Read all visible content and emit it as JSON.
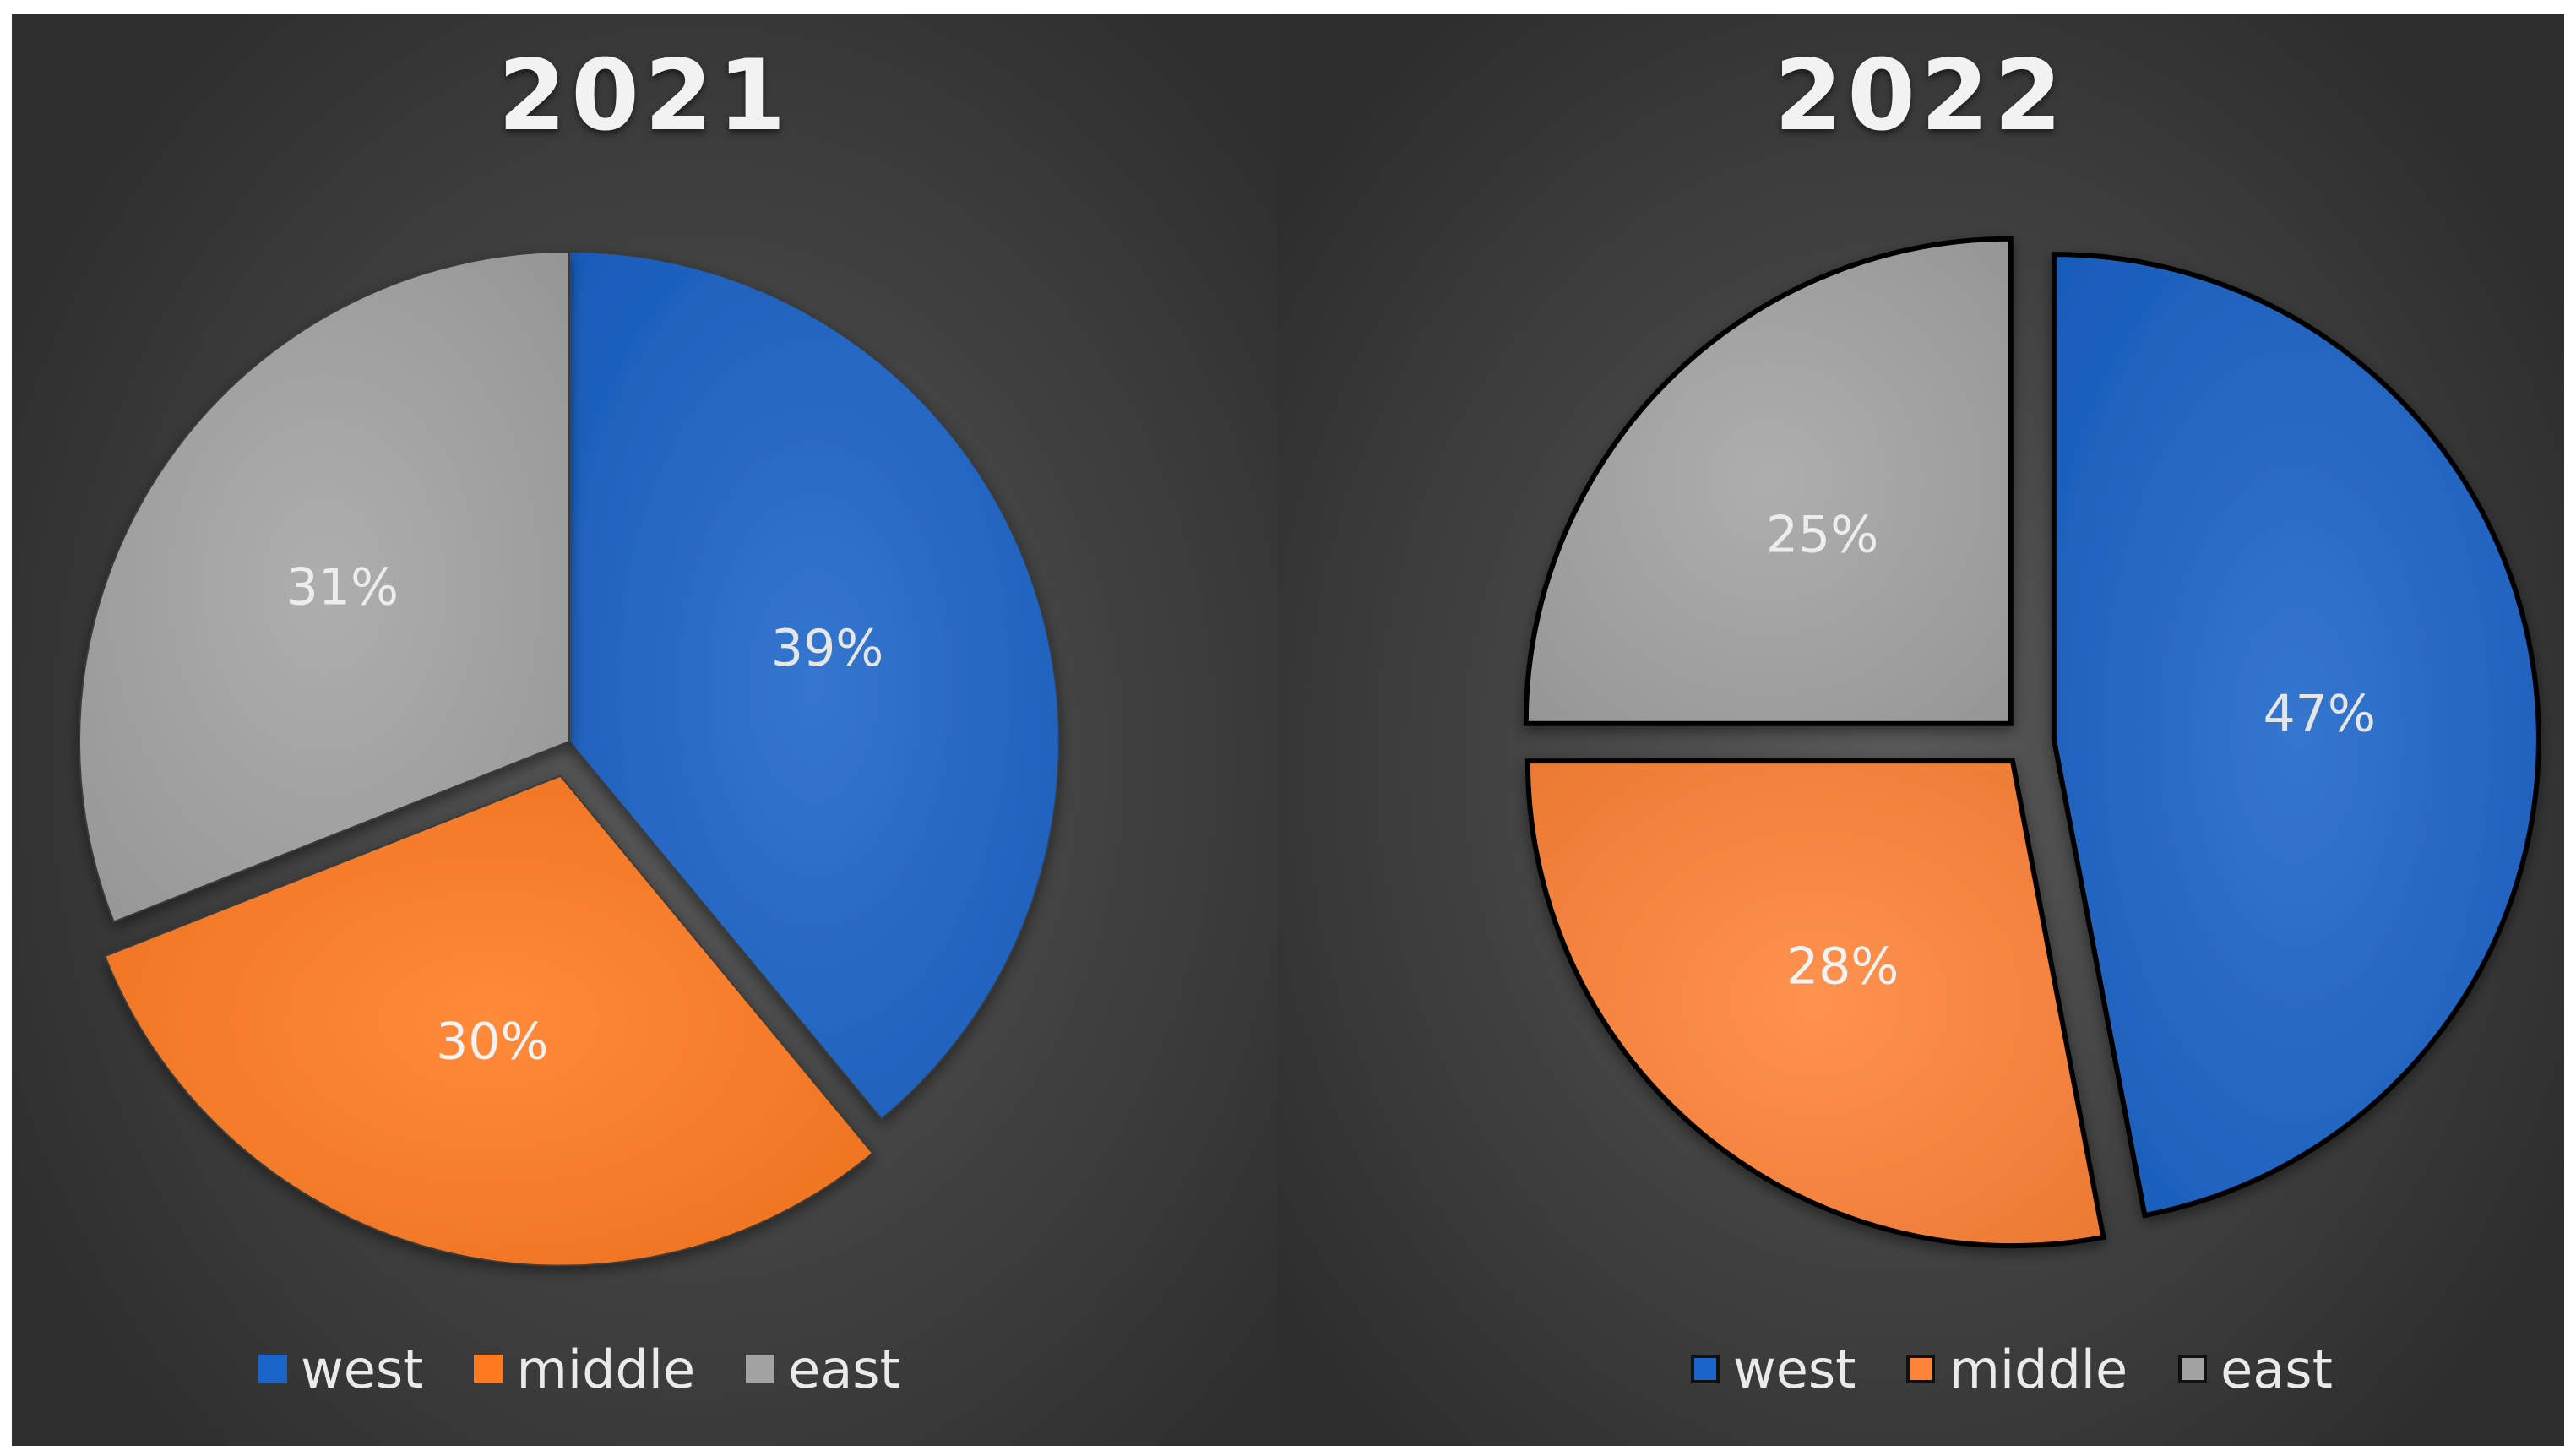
{
  "chart_data": [
    {
      "type": "pie",
      "title": "2021",
      "categories": [
        "west",
        "middle",
        "east"
      ],
      "values": [
        39,
        30,
        31
      ],
      "data_labels": [
        "39%",
        "30%",
        "31%"
      ],
      "colors": [
        "#1a63c9",
        "#ff7a1f",
        "#a3a3a3"
      ],
      "label_colors": [
        "#e6e6e6",
        "#f2f2f2",
        "#ededed"
      ],
      "legend": "bottom",
      "exploded_slices": [
        "middle"
      ]
    },
    {
      "type": "pie",
      "title": "2022",
      "categories": [
        "west",
        "middle",
        "east"
      ],
      "values": [
        47,
        28,
        25
      ],
      "data_labels": [
        "47%",
        "28%",
        "25%"
      ],
      "colors": [
        "#1a63c9",
        "#ff8337",
        "#a3a3a3"
      ],
      "label_colors": [
        "#e6e6e6",
        "#f2f2f2",
        "#ededed"
      ],
      "legend": "bottom",
      "exploded_slices": [
        "west",
        "middle",
        "east"
      ]
    }
  ]
}
